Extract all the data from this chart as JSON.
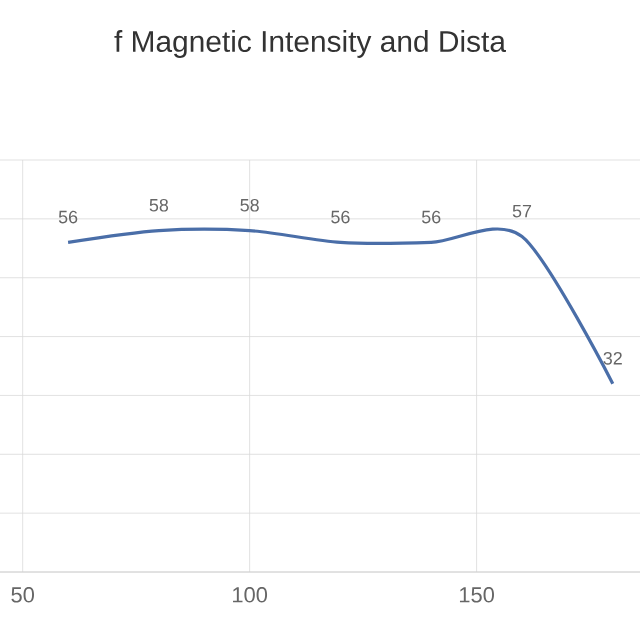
{
  "chart_data": {
    "type": "line",
    "title": "f Magnetic Intensity and Dista",
    "x": [
      60,
      80,
      100,
      120,
      140,
      160,
      180
    ],
    "series": [
      {
        "color": "#4a6ea8",
        "values": [
          56,
          58,
          58,
          56,
          56,
          57,
          32
        ]
      }
    ],
    "xlim": [
      45,
      186
    ],
    "xticks": [
      50,
      100,
      150
    ],
    "ylim": [
      0,
      70
    ],
    "tick_labels": "x",
    "grid": true,
    "data_labels": true,
    "marker": "none",
    "line_style": "solid"
  }
}
